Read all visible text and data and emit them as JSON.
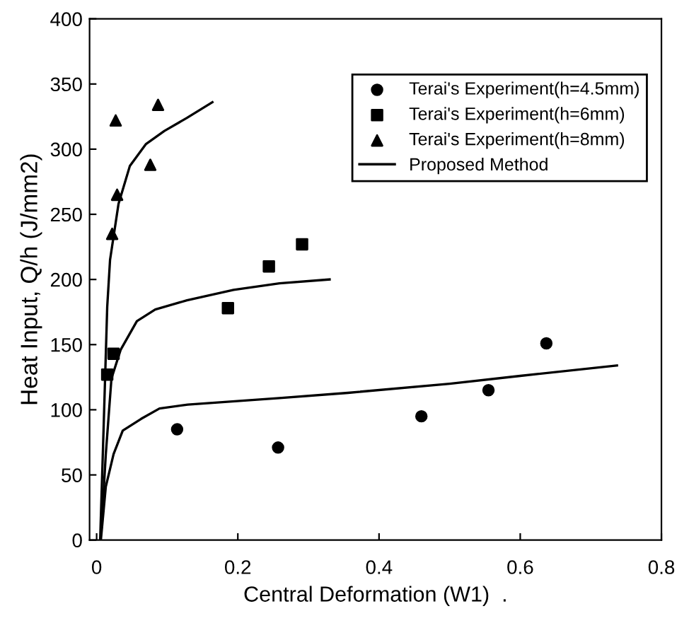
{
  "chart_data": {
    "type": "scatter",
    "xlabel": "Central Deformation (W1)  .",
    "ylabel": "Heat Input, Q/h (J/mm2)",
    "xlim": [
      -0.01,
      0.8
    ],
    "ylim": [
      0,
      400
    ],
    "xticks": [
      0,
      0.2,
      0.4,
      0.6,
      0.8
    ],
    "yticks": [
      0,
      50,
      100,
      150,
      200,
      250,
      300,
      350,
      400
    ],
    "grid": false,
    "legend": "top right",
    "series": [
      {
        "name": "Terai's Experiment(h=4.5mm)",
        "marker": "circle",
        "color": "#000000",
        "x": [
          0.114,
          0.257,
          0.46,
          0.555,
          0.637
        ],
        "values": [
          85,
          71,
          95,
          115,
          151
        ]
      },
      {
        "name": "Terai's Experiment(h=6mm)",
        "marker": "square",
        "color": "#000000",
        "x": [
          0.015,
          0.024,
          0.186,
          0.244,
          0.291
        ],
        "values": [
          127,
          143,
          178,
          210,
          227
        ]
      },
      {
        "name": "Terai's Experiment(h=8mm)",
        "marker": "triangle",
        "color": "#000000",
        "x": [
          0.022,
          0.029,
          0.027,
          0.076,
          0.087
        ],
        "values": [
          235,
          265,
          322,
          288,
          334
        ]
      },
      {
        "name": "Proposed Method",
        "type": "line",
        "marker": "none",
        "line_style": "solid",
        "color": "#000000",
        "x": [
          0.006,
          0.013,
          0.024,
          0.037,
          0.063,
          0.089,
          0.129,
          0.259,
          0.356,
          0.5,
          0.6,
          0.737
        ],
        "values": [
          0,
          41,
          66,
          84,
          93,
          101,
          104,
          109,
          113,
          120,
          126,
          134
        ]
      },
      {
        "type": "line",
        "marker": "none",
        "line_style": "solid",
        "color": "#000000",
        "x": [
          0.007,
          0.013,
          0.021,
          0.034,
          0.057,
          0.083,
          0.128,
          0.194,
          0.259,
          0.33
        ],
        "values": [
          10,
          66,
          124,
          146,
          168,
          177,
          184,
          192,
          197,
          200
        ]
      },
      {
        "type": "line",
        "marker": "none",
        "line_style": "solid",
        "color": "#000000",
        "x": [
          0.005,
          0.01,
          0.015,
          0.019,
          0.031,
          0.047,
          0.07,
          0.096,
          0.128,
          0.164
        ],
        "values": [
          0,
          88,
          179,
          215,
          258,
          287,
          304,
          314,
          324,
          336
        ]
      }
    ]
  }
}
